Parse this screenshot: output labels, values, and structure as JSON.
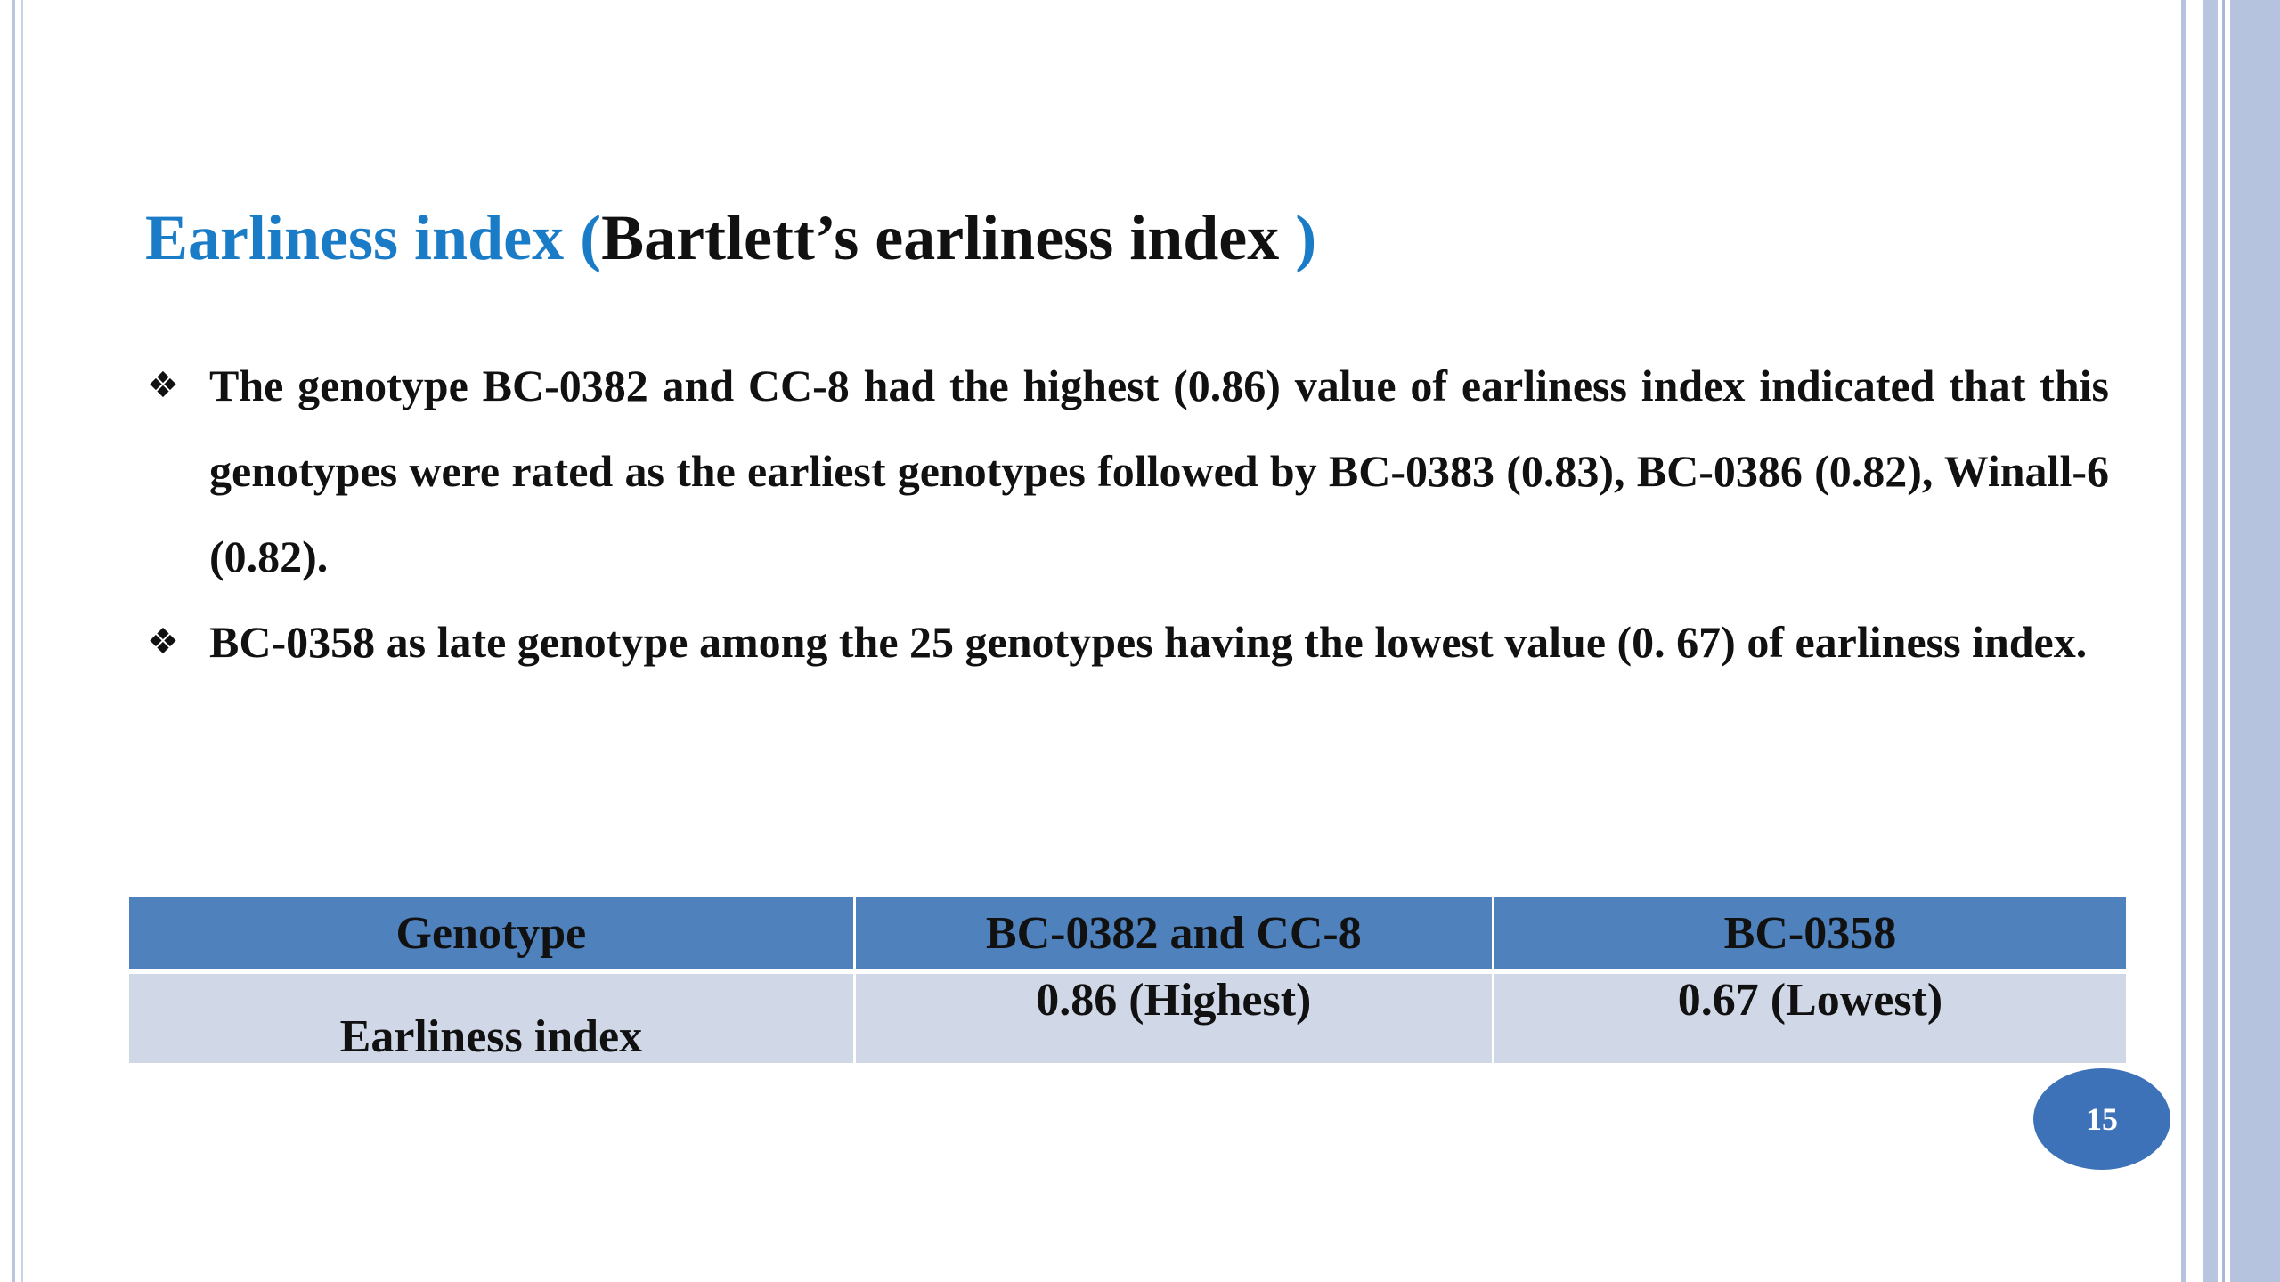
{
  "slide": {
    "title_blue": "Earliness index (",
    "title_dark": "Bartlett’s earliness index ",
    "title_close": ")",
    "bullets": [
      {
        "icon": "diamond-bullet-icon",
        "text": "The genotype BC-0382 and CC-8 had the highest (0.86) value of earliness index indicated that this genotypes were rated as the earliest genotypes followed by BC-0383 (0.83), BC-0386 (0.82), Winall-6 (0.82)."
      },
      {
        "icon": "diamond-bullet-icon",
        "text": "BC-0358 as late genotype among the 25 genotypes having the lowest value (0. 67) of earliness index."
      }
    ],
    "table": {
      "headers": [
        "Genotype",
        "BC-0382 and CC-8",
        "BC-0358"
      ],
      "rows": [
        [
          "Earliness index",
          "0.86 (Highest)",
          "0.67 (Lowest)"
        ]
      ]
    },
    "page_number": "15"
  },
  "colors": {
    "title_accent": "#1a7bc7",
    "table_header": "#4f81bd",
    "table_row": "#d0d8e8",
    "page_badge": "#3e72b8",
    "border": "#b6c3de"
  }
}
